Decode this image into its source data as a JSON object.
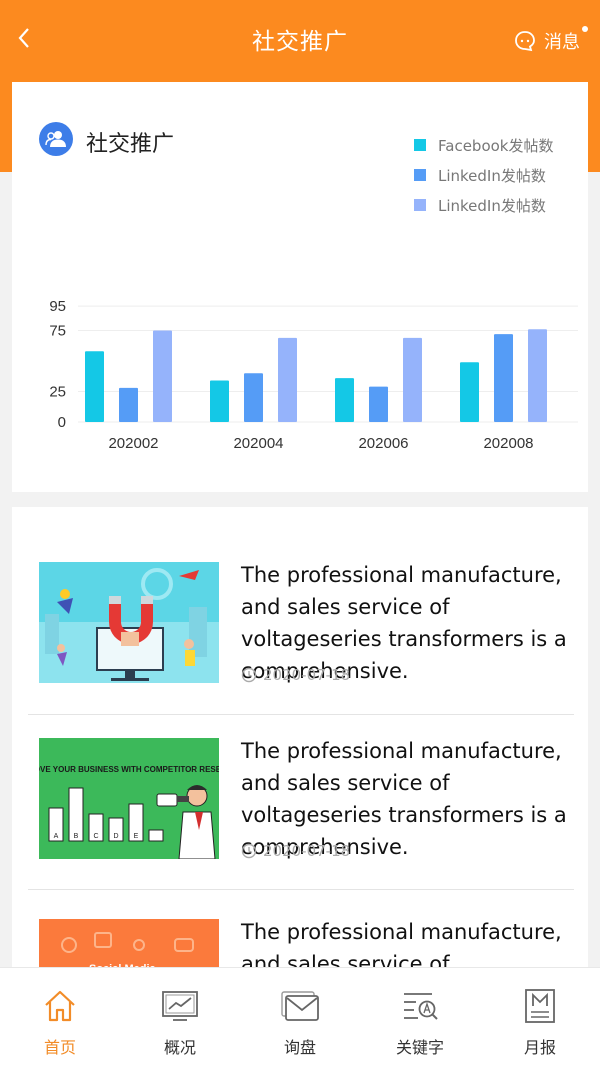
{
  "header": {
    "title": "社交推广",
    "message_label": "消息",
    "accent": "#fc8a1f"
  },
  "chart_card": {
    "title": "社交推广",
    "icon": "user-group-icon"
  },
  "chart_data": {
    "type": "bar",
    "categories": [
      "202002",
      "202004",
      "202006",
      "202008"
    ],
    "series": [
      {
        "name": "Facebook发帖数",
        "color": "#14c8e6",
        "values": [
          58,
          34,
          36,
          49
        ]
      },
      {
        "name": "LinkedIn发帖数",
        "color": "#559cf6",
        "values": [
          28,
          40,
          29,
          72
        ]
      },
      {
        "name": "LinkedIn发帖数",
        "color": "#95b3fb",
        "values": [
          75,
          69,
          69,
          76
        ]
      }
    ],
    "yticks": [
      "95",
      "75",
      "25",
      "0"
    ],
    "grid": true,
    "legend": "top-right"
  },
  "articles": [
    {
      "text": "The professional manufacture, and sales service of voltageseries transformers is a comprehensive.",
      "date": "2020-07-18",
      "thumb": "magnet-marketing-illustration"
    },
    {
      "text": "The professional manufacture, and sales service of voltageseries transformers is a comprehensive.",
      "date": "2020-07-18",
      "thumb": "competitor-research-illustration",
      "thumb_caption": "IMPROVE YOUR BUSINESS WITH COMPETITOR RESEARCH",
      "bar_labels": [
        "A",
        "B",
        "C",
        "D",
        "E"
      ]
    },
    {
      "text": "The professional manufacture, and sales service of voltageseries transformers is a comprehensive.",
      "date": "",
      "thumb": "social-media-illustration",
      "thumb_caption": "Social Media"
    }
  ],
  "tabs": [
    {
      "label": "首页",
      "icon": "home-icon"
    },
    {
      "label": "概况",
      "icon": "chart-monitor-icon"
    },
    {
      "label": "询盘",
      "icon": "mail-icon"
    },
    {
      "label": "关键字",
      "icon": "keyword-search-icon"
    },
    {
      "label": "月报",
      "icon": "monthly-report-icon"
    }
  ]
}
